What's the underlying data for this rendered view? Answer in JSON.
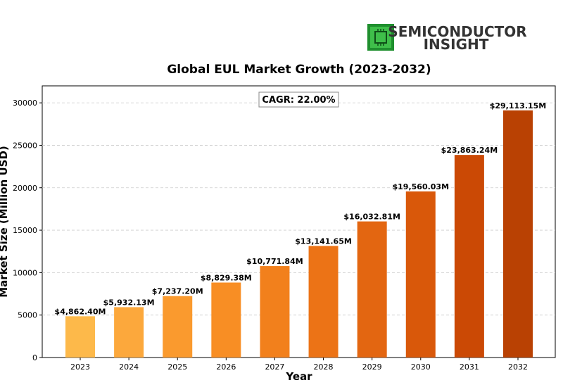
{
  "logo": {
    "line1": "SEMICONDUCTOR",
    "line2": "INSIGHT",
    "icon": "chip-icon",
    "color": "#2aa33a"
  },
  "chart_data": {
    "type": "bar",
    "title": "Global EUL Market Growth (2023-2032)",
    "xlabel": "Year",
    "ylabel": "Market Size (Million USD)",
    "annotation": "CAGR: 22.00%",
    "categories": [
      "2023",
      "2024",
      "2025",
      "2026",
      "2027",
      "2028",
      "2029",
      "2030",
      "2031",
      "2032"
    ],
    "values": [
      4862.4,
      5932.13,
      7237.2,
      8829.38,
      10771.84,
      13141.65,
      16032.81,
      19560.03,
      23863.24,
      29113.15
    ],
    "value_labels": [
      "$4,862.40M",
      "$5,932.13M",
      "$7,237.20M",
      "$8,829.38M",
      "$10,771.84M",
      "$13,141.65M",
      "$16,032.81M",
      "$19,560.03M",
      "$23,863.24M",
      "$29,113.15M"
    ],
    "ylim": [
      0,
      32000
    ],
    "yticks": [
      0,
      5000,
      10000,
      15000,
      20000,
      25000,
      30000
    ],
    "grid": "y-dashed",
    "bar_colors": [
      "#fdb94a",
      "#fca83c",
      "#fa9a2e",
      "#f88e24",
      "#f2801c",
      "#ec7316",
      "#e36611",
      "#d9580a",
      "#cb4905",
      "#b94103"
    ]
  }
}
